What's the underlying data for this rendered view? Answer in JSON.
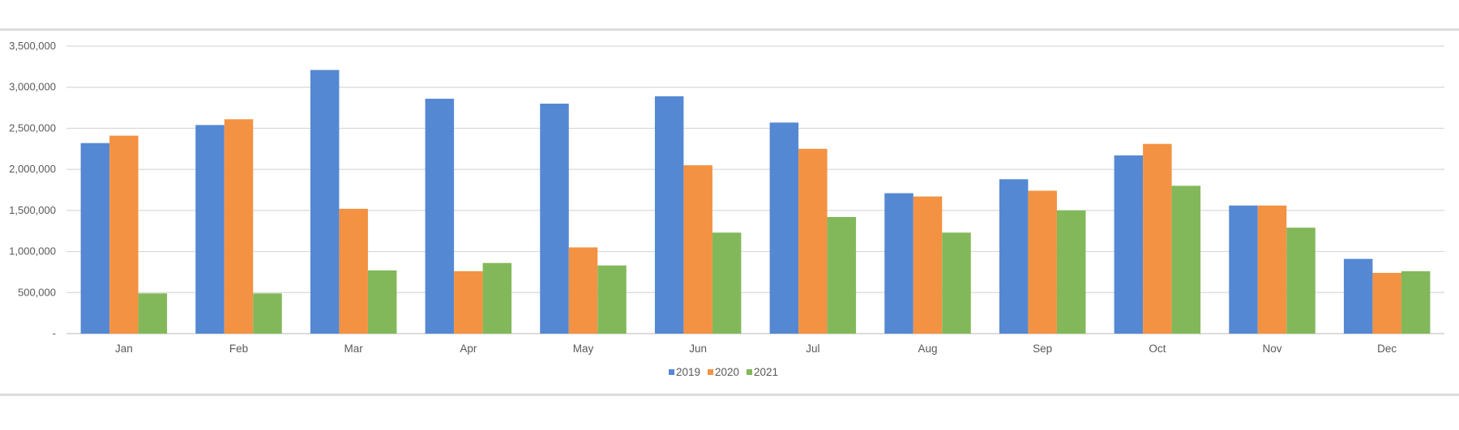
{
  "chart_data": {
    "type": "bar",
    "title": "",
    "xlabel": "",
    "ylabel": "",
    "categories": [
      "Jan",
      "Feb",
      "Mar",
      "Apr",
      "May",
      "Jun",
      "Jul",
      "Aug",
      "Sep",
      "Oct",
      "Nov",
      "Dec"
    ],
    "series": [
      {
        "name": "2019",
        "color": "#5588d3",
        "values": [
          2320000,
          2540000,
          3210000,
          2860000,
          2800000,
          2890000,
          2570000,
          1710000,
          1880000,
          2170000,
          1560000,
          910000
        ]
      },
      {
        "name": "2020",
        "color": "#f39242",
        "values": [
          2410000,
          2610000,
          1520000,
          760000,
          1050000,
          2050000,
          2250000,
          1670000,
          1740000,
          2310000,
          1560000,
          740000
        ]
      },
      {
        "name": "2021",
        "color": "#82b85a",
        "values": [
          490000,
          490000,
          770000,
          860000,
          830000,
          1230000,
          1420000,
          1230000,
          1500000,
          1800000,
          1290000,
          760000
        ]
      }
    ],
    "ylim": [
      0,
      3500000
    ],
    "yticks": [
      0,
      500000,
      1000000,
      1500000,
      2000000,
      2500000,
      3000000,
      3500000
    ],
    "ytick_labels": [
      "-",
      "500,000",
      "1,000,000",
      "1,500,000",
      "2,000,000",
      "2,500,000",
      "3,000,000",
      "3,500,000"
    ],
    "grid": true,
    "legend": {
      "position": "bottom-center",
      "entries": [
        "2019",
        "2020",
        "2021"
      ]
    }
  }
}
